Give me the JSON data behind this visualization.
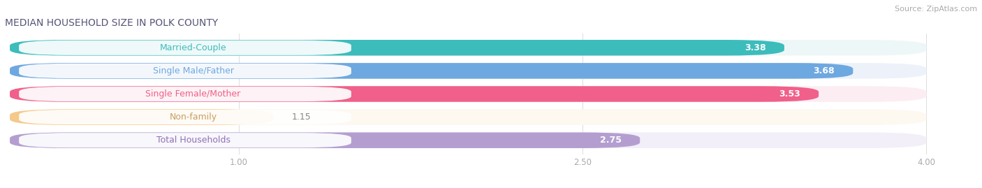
{
  "title": "MEDIAN HOUSEHOLD SIZE IN POLK COUNTY",
  "source": "Source: ZipAtlas.com",
  "categories": [
    "Married-Couple",
    "Single Male/Father",
    "Single Female/Mother",
    "Non-family",
    "Total Households"
  ],
  "values": [
    3.38,
    3.68,
    3.53,
    1.15,
    2.75
  ],
  "bar_colors": [
    "#3dbcbc",
    "#6ea8e0",
    "#f0608a",
    "#f5c98a",
    "#b49ed0"
  ],
  "bar_bg_colors": [
    "#eef7f7",
    "#edf2fa",
    "#fcedf3",
    "#fdf8f0",
    "#f2eff8"
  ],
  "label_bg_color": "#ffffff",
  "label_text_colors": [
    "#3dbcbc",
    "#6ea8e0",
    "#f0608a",
    "#c8a060",
    "#9070b8"
  ],
  "value_label_colors": [
    "#ffffff",
    "#ffffff",
    "#ffffff",
    "#888888",
    "#888888"
  ],
  "xlim": [
    0,
    4.2
  ],
  "xmin": 0,
  "xtick_values": [
    1.0,
    2.5,
    4.0
  ],
  "title_fontsize": 10,
  "label_fontsize": 9,
  "value_fontsize": 9,
  "source_fontsize": 8,
  "title_color": "#555577",
  "source_color": "#aaaaaa",
  "tick_color": "#aaaaaa"
}
